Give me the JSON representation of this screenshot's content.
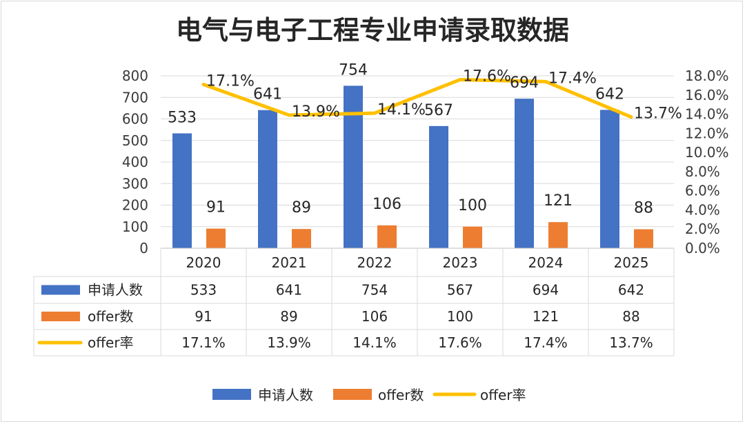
{
  "chart_data": {
    "type": "bar",
    "title": "电气与电子工程专业申请录取数据",
    "categories": [
      "2020",
      "2021",
      "2022",
      "2023",
      "2024",
      "2025"
    ],
    "series": [
      {
        "name": "申请人数",
        "type": "bar",
        "axis": "left",
        "color": "#4472C4",
        "values": [
          533,
          641,
          754,
          567,
          694,
          642
        ]
      },
      {
        "name": "offer数",
        "type": "bar",
        "axis": "left",
        "color": "#ED7D31",
        "values": [
          91,
          89,
          106,
          100,
          121,
          88
        ]
      },
      {
        "name": "offer率",
        "type": "line",
        "axis": "right",
        "color": "#FFC000",
        "values": [
          17.1,
          13.9,
          14.1,
          17.6,
          17.4,
          13.7
        ]
      }
    ],
    "y_left": {
      "min": 0,
      "max": 800,
      "ticks": [
        "0",
        "100",
        "200",
        "300",
        "400",
        "500",
        "600",
        "700",
        "800"
      ]
    },
    "y_right": {
      "min": 0,
      "max": 18,
      "ticks": [
        "0.0%",
        "2.0%",
        "4.0%",
        "6.0%",
        "8.0%",
        "10.0%",
        "12.0%",
        "14.0%",
        "16.0%",
        "18.0%"
      ]
    },
    "data_labels": {
      "申请人数": [
        "533",
        "641",
        "754",
        "567",
        "694",
        "642"
      ],
      "offer数": [
        "91",
        "89",
        "106",
        "100",
        "121",
        "88"
      ],
      "offer率": [
        "17.1%",
        "13.9%",
        "14.1%",
        "17.6%",
        "17.4%",
        "13.7%"
      ]
    },
    "data_table": {
      "rows": [
        {
          "name": "申请人数",
          "cells": [
            "533",
            "641",
            "754",
            "567",
            "694",
            "642"
          ]
        },
        {
          "name": "offer数",
          "cells": [
            "91",
            "89",
            "106",
            "100",
            "121",
            "88"
          ]
        },
        {
          "name": "offer率",
          "cells": [
            "17.1%",
            "13.9%",
            "14.1%",
            "17.6%",
            "17.4%",
            "13.7%"
          ]
        }
      ]
    },
    "legend": {
      "position": "bottom",
      "items": [
        "申请人数",
        "offer数",
        "offer率"
      ]
    },
    "grid": true
  }
}
